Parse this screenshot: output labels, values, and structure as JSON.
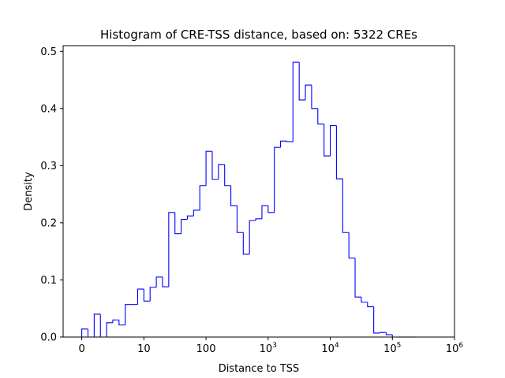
{
  "chart_data": {
    "type": "histogram-step",
    "title": "Histogram of CRE-TSS distance, based on: 5322 CREs",
    "xlabel": "Distance to TSS",
    "ylabel": "Density",
    "x_scale": "symlog",
    "xlim": [
      -0.3,
      6.0
    ],
    "ylim": [
      0,
      0.51
    ],
    "line_color": "#0000ff",
    "grid": false,
    "xticks": [
      {
        "value": 0,
        "label": "0"
      },
      {
        "value": 1,
        "label": "10"
      },
      {
        "value": 2,
        "label": "100"
      },
      {
        "value": 3,
        "label": "10",
        "sup": "3"
      },
      {
        "value": 4,
        "label": "10",
        "sup": "4"
      },
      {
        "value": 5,
        "label": "10",
        "sup": "5"
      },
      {
        "value": 6,
        "label": "10",
        "sup": "6"
      }
    ],
    "yticks": [
      0.0,
      0.1,
      0.2,
      0.3,
      0.4,
      0.5
    ],
    "ytick_labels": [
      "0.0",
      "0.1",
      "0.2",
      "0.3",
      "0.4",
      "0.5"
    ],
    "bin_edges": [
      0,
      0.1,
      0.2,
      0.3,
      0.4,
      0.5,
      0.6,
      0.7,
      0.8,
      0.9,
      1.0,
      1.1,
      1.2,
      1.3,
      1.4,
      1.5,
      1.6,
      1.7,
      1.8,
      1.9,
      2.0,
      2.1,
      2.2,
      2.3,
      2.4,
      2.5,
      2.6,
      2.7,
      2.8,
      2.9,
      3.0,
      3.1,
      3.2,
      3.3,
      3.4,
      3.5,
      3.6,
      3.7,
      3.8,
      3.9,
      4.0,
      4.1,
      4.2,
      4.3,
      4.4,
      4.5,
      4.6,
      4.7,
      4.8,
      4.9,
      5.0,
      5.1,
      5.2,
      5.3,
      5.4
    ],
    "values": [
      0.014,
      0.0,
      0.04,
      0.0,
      0.025,
      0.03,
      0.021,
      0.057,
      0.057,
      0.084,
      0.063,
      0.087,
      0.105,
      0.088,
      0.218,
      0.181,
      0.206,
      0.212,
      0.222,
      0.265,
      0.325,
      0.276,
      0.302,
      0.265,
      0.23,
      0.183,
      0.145,
      0.204,
      0.207,
      0.23,
      0.218,
      0.332,
      0.343,
      0.342,
      0.481,
      0.415,
      0.441,
      0.4,
      0.373,
      0.317,
      0.37,
      0.277,
      0.183,
      0.138,
      0.07,
      0.061,
      0.053,
      0.007,
      0.008,
      0.004,
      0.0,
      0.0,
      0.0,
      0.0
    ]
  }
}
